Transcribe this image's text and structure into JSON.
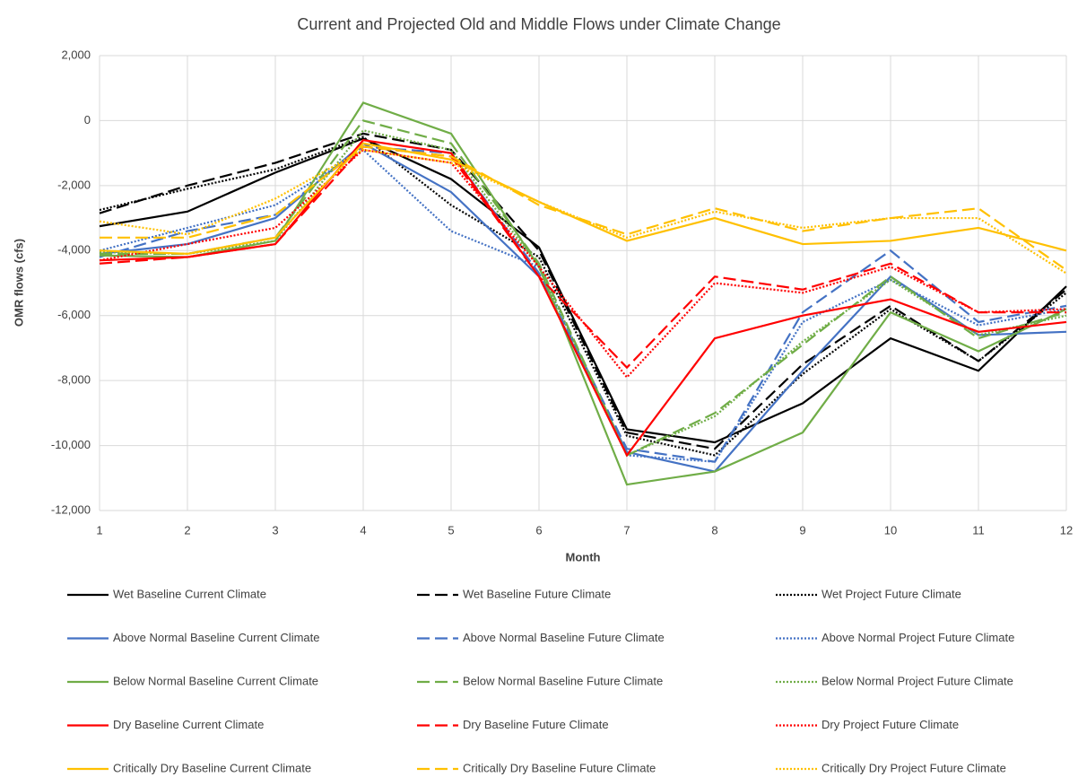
{
  "chart_data": {
    "type": "line",
    "title": "Current and Projected Old and Middle Flows under Climate Change",
    "x_label": "Month",
    "y_label": "OMR flows (cfs)",
    "x": [
      1,
      2,
      3,
      4,
      5,
      6,
      7,
      8,
      9,
      10,
      11,
      12
    ],
    "xlim": [
      1,
      12
    ],
    "xticks": [
      1,
      2,
      3,
      4,
      5,
      6,
      7,
      8,
      9,
      10,
      11,
      12
    ],
    "ylim": [
      -12000,
      2000
    ],
    "yticks": [
      {
        "value": -12000,
        "label": "-12,000"
      },
      {
        "value": -10000,
        "label": "-10,000"
      },
      {
        "value": -8000,
        "label": "-8,000"
      },
      {
        "value": -6000,
        "label": "-6,000"
      },
      {
        "value": -4000,
        "label": "-4,000"
      },
      {
        "value": -2000,
        "label": "-2,000"
      },
      0,
      {
        "value": 2000,
        "label": "2,000"
      }
    ],
    "grid": true,
    "legend_position": "bottom",
    "series": [
      {
        "name": "Wet Baseline Current Climate",
        "color": "#000000",
        "dash": "solid",
        "values": [
          -3250,
          -2800,
          -1600,
          -550,
          -1800,
          -3900,
          -9500,
          -9900,
          -8700,
          -6700,
          -7700,
          -5100
        ]
      },
      {
        "name": "Wet Baseline Future Climate",
        "color": "#000000",
        "dash": "dashed",
        "values": [
          -2850,
          -2000,
          -1300,
          -400,
          -900,
          -4000,
          -9600,
          -10100,
          -7500,
          -5700,
          -7400,
          -5200
        ]
      },
      {
        "name": "Wet Project Future Climate",
        "color": "#000000",
        "dash": "dotted",
        "values": [
          -2750,
          -2100,
          -1500,
          -500,
          -2600,
          -4200,
          -9700,
          -10300,
          -7800,
          -5800,
          -7400,
          -5300
        ]
      },
      {
        "name": "Above Normal Baseline Current Climate",
        "color": "#4472c4",
        "dash": "solid",
        "values": [
          -4100,
          -3800,
          -3000,
          -700,
          -2200,
          -4800,
          -10200,
          -10800,
          -7700,
          -4800,
          -6600,
          -6500
        ]
      },
      {
        "name": "Above Normal Baseline Future Climate",
        "color": "#4472c4",
        "dash": "dashed",
        "values": [
          -4200,
          -3400,
          -2900,
          -800,
          -1000,
          -4700,
          -10100,
          -10500,
          -5900,
          -4000,
          -6200,
          -5700
        ]
      },
      {
        "name": "Above Normal Project Future Climate",
        "color": "#4472c4",
        "dash": "dotted",
        "values": [
          -4000,
          -3300,
          -2600,
          -900,
          -3400,
          -4500,
          -10300,
          -10500,
          -6200,
          -4900,
          -6300,
          -5800
        ]
      },
      {
        "name": "Below Normal Baseline Current Climate",
        "color": "#70ad47",
        "dash": "solid",
        "values": [
          -4150,
          -4200,
          -3700,
          550,
          -400,
          -4500,
          -11200,
          -10800,
          -9600,
          -5900,
          -7100,
          -5800
        ]
      },
      {
        "name": "Below Normal Baseline Future Climate",
        "color": "#70ad47",
        "dash": "dashed",
        "values": [
          -4100,
          -4100,
          -3600,
          0,
          -700,
          -4400,
          -10300,
          -9000,
          -6900,
          -4800,
          -6700,
          -5900
        ]
      },
      {
        "name": "Below Normal Project Future Climate",
        "color": "#70ad47",
        "dash": "dotted",
        "values": [
          -4050,
          -4100,
          -3700,
          -300,
          -900,
          -4500,
          -10300,
          -9100,
          -6800,
          -4900,
          -6600,
          -6000
        ]
      },
      {
        "name": "Dry Baseline Current Climate",
        "color": "#ff0000",
        "dash": "solid",
        "values": [
          -4300,
          -4200,
          -3800,
          -600,
          -1000,
          -4800,
          -10300,
          -6700,
          -6000,
          -5500,
          -6500,
          -6200
        ]
      },
      {
        "name": "Dry Baseline Future Climate",
        "color": "#ff0000",
        "dash": "dashed",
        "values": [
          -4400,
          -4200,
          -3800,
          -800,
          -1100,
          -4800,
          -7600,
          -4800,
          -5200,
          -4400,
          -5900,
          -5900
        ]
      },
      {
        "name": "Dry Project Future Climate",
        "color": "#ff0000",
        "dash": "dotted",
        "values": [
          -4300,
          -3800,
          -3300,
          -900,
          -1300,
          -4500,
          -7900,
          -5000,
          -5300,
          -4500,
          -5900,
          -5800
        ]
      },
      {
        "name": "Critically Dry Baseline Current Climate",
        "color": "#ffc000",
        "dash": "solid",
        "values": [
          -4000,
          -4100,
          -3600,
          -700,
          -1200,
          -2500,
          -3700,
          -3000,
          -3800,
          -3700,
          -3300,
          -4000
        ]
      },
      {
        "name": "Critically Dry Baseline Future Climate",
        "color": "#ffc000",
        "dash": "dashed",
        "values": [
          -3600,
          -3600,
          -2900,
          -800,
          -1100,
          -2600,
          -3500,
          -2700,
          -3400,
          -3000,
          -2700,
          -4600
        ]
      },
      {
        "name": "Critically Dry Project Future Climate",
        "color": "#ffc000",
        "dash": "dotted",
        "values": [
          -3100,
          -3500,
          -2400,
          -900,
          -1300,
          -2500,
          -3600,
          -2800,
          -3300,
          -3000,
          -3000,
          -4700
        ]
      }
    ]
  }
}
